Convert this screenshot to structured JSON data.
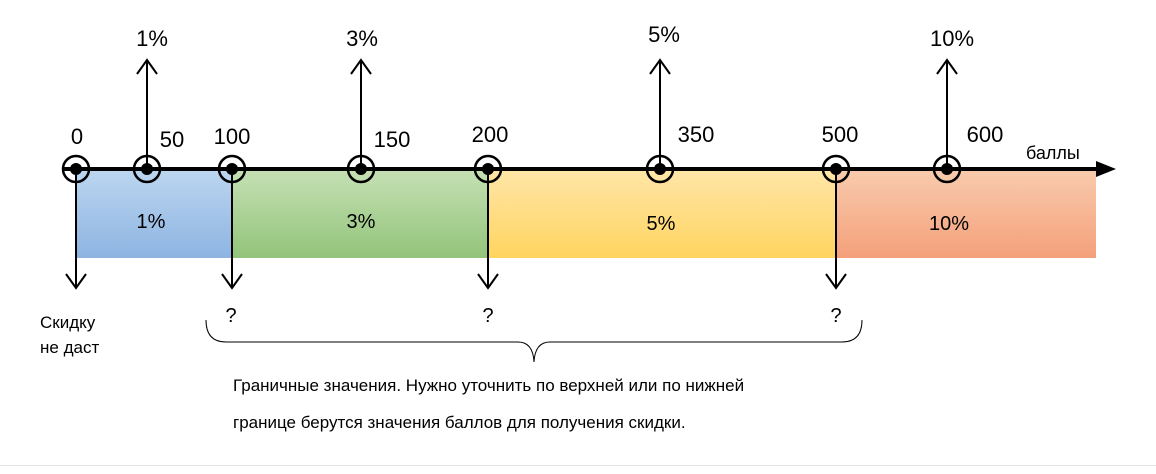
{
  "axis_label": "баллы",
  "ticks": [
    {
      "label": "0"
    },
    {
      "label": "50"
    },
    {
      "label": "100"
    },
    {
      "label": "150"
    },
    {
      "label": "200"
    },
    {
      "label": "350"
    },
    {
      "label": "500"
    },
    {
      "label": "600"
    }
  ],
  "up_labels": [
    "1%",
    "3%",
    "5%",
    "10%"
  ],
  "zones": [
    {
      "label": "1%",
      "color": "#9dc3e6"
    },
    {
      "label": "3%",
      "color": "#a9d18e"
    },
    {
      "label": "5%",
      "color": "#ffd966"
    },
    {
      "label": "10%",
      "color": "#f4b183"
    }
  ],
  "question_marks": [
    "?",
    "?",
    "?"
  ],
  "no_discount": {
    "line1": "Скидку",
    "line2": "не даст"
  },
  "note": {
    "line1": "Граничные значения. Нужно уточнить по верхней или по нижней",
    "line2": "границе  берутся значения баллов для получения скидки."
  }
}
